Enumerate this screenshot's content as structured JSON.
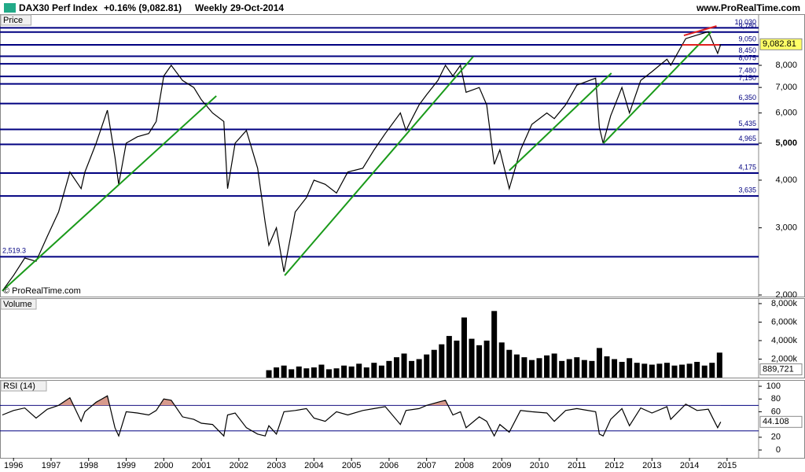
{
  "header": {
    "title": "DAX30 Perf Index",
    "change": "+0.16% (9,082.81)",
    "interval": "Weekly",
    "date": "29-Oct-2014",
    "site": "www.ProRealTime.com"
  },
  "chart_data": [
    {
      "type": "line",
      "label": "Price",
      "watermark": "© ProRealTime.com",
      "color": "#000000",
      "log_scale": true,
      "xlim": [
        1995.64,
        2015.84
      ],
      "ylim": [
        1981,
        10894
      ],
      "yticks": [
        {
          "value": 2000,
          "label": "2,000"
        },
        {
          "value": 3000,
          "label": "3,000"
        },
        {
          "value": 4000,
          "label": "4,000"
        },
        {
          "value": 5000,
          "label": "5,000"
        },
        {
          "value": 6000,
          "label": "6,000"
        },
        {
          "value": 7000,
          "label": "7,000"
        },
        {
          "value": 8000,
          "label": "8,000"
        }
      ],
      "x": [
        1995.7,
        1996.0,
        1996.3,
        1996.6,
        1996.9,
        1997.2,
        1997.5,
        1997.8,
        1997.9,
        1998.2,
        1998.5,
        1998.7,
        1998.8,
        1999.0,
        1999.3,
        1999.6,
        1999.8,
        2000.0,
        2000.2,
        2000.5,
        2000.8,
        2001.0,
        2001.3,
        2001.6,
        2001.7,
        2001.9,
        2002.2,
        2002.5,
        2002.7,
        2002.8,
        2003.0,
        2003.2,
        2003.5,
        2003.8,
        2004.0,
        2004.3,
        2004.6,
        2004.9,
        2005.3,
        2005.6,
        2005.9,
        2006.3,
        2006.45,
        2006.8,
        2007.0,
        2007.3,
        2007.5,
        2007.7,
        2007.9,
        2008.05,
        2008.4,
        2008.6,
        2008.8,
        2008.95,
        2009.2,
        2009.5,
        2009.8,
        2010.2,
        2010.4,
        2010.7,
        2011.0,
        2011.5,
        2011.6,
        2011.7,
        2011.9,
        2012.2,
        2012.4,
        2012.7,
        2013.0,
        2013.4,
        2013.5,
        2013.9,
        2014.2,
        2014.5,
        2014.75,
        2014.83
      ],
      "values": [
        2050,
        2250,
        2500,
        2450,
        2850,
        3300,
        4200,
        3800,
        4200,
        5000,
        6100,
        4600,
        3900,
        5000,
        5200,
        5300,
        5700,
        7500,
        8000,
        7300,
        7000,
        6500,
        6000,
        5700,
        3800,
        5000,
        5400,
        4300,
        3100,
        2700,
        3000,
        2300,
        3300,
        3600,
        4000,
        3900,
        3700,
        4200,
        4300,
        4800,
        5300,
        6000,
        5400,
        6300,
        6700,
        7300,
        8000,
        7500,
        8000,
        6800,
        7000,
        6300,
        4400,
        4800,
        3800,
        4800,
        5600,
        6000,
        5800,
        6300,
        7100,
        7400,
        5500,
        5000,
        5900,
        7000,
        6000,
        7300,
        7700,
        8300,
        8000,
        9400,
        9600,
        9800,
        8600,
        9082.81
      ],
      "last_value": {
        "value": 9082.81,
        "label": "9,082.81"
      },
      "levels": [
        {
          "value": 10030,
          "label": "10,030"
        },
        {
          "value": 9780,
          "label": "9,780"
        },
        {
          "value": 9050,
          "label": "9,050"
        },
        {
          "value": 8450,
          "label": "8,450"
        },
        {
          "value": 8075,
          "label": "8,075"
        },
        {
          "value": 7480,
          "label": "7,480"
        },
        {
          "value": 7150,
          "label": "7,150"
        },
        {
          "value": 6350,
          "label": "6,350"
        },
        {
          "value": 5435,
          "label": "5,435"
        },
        {
          "value": 4965,
          "label": "4,965"
        },
        {
          "value": 4175,
          "label": "4,175"
        },
        {
          "value": 3635,
          "label": "3,635"
        },
        {
          "value": 2519.3,
          "label": "2,519.3"
        }
      ],
      "level_color": "#000080",
      "trendlines": [
        {
          "color": "#1a9a1a",
          "x": [
            1995.7,
            2001.4
          ],
          "values": [
            2050,
            6650
          ]
        },
        {
          "color": "#1a9a1a",
          "x": [
            2003.22,
            2008.24
          ],
          "values": [
            2250,
            8430
          ]
        },
        {
          "color": "#1a9a1a",
          "x": [
            2009.2,
            2011.92
          ],
          "values": [
            4240,
            7630
          ]
        },
        {
          "color": "#1a9a1a",
          "x": [
            2011.71,
            2014.58
          ],
          "values": [
            5000,
            9800
          ]
        },
        {
          "color": "#e02020",
          "x": [
            2013.85,
            2014.72
          ],
          "values": [
            9580,
            10140
          ]
        },
        {
          "color": "#e02020",
          "x": [
            2013.8,
            2014.8
          ],
          "values": [
            9050,
            9050
          ]
        }
      ]
    },
    {
      "type": "bar",
      "label": "Volume",
      "color": "#000000",
      "xlim": [
        1995.64,
        2015.84
      ],
      "ylim": [
        0,
        8590000
      ],
      "yticks": [
        {
          "value": 2000000,
          "label": "2,000k"
        },
        {
          "value": 4000000,
          "label": "4,000k"
        },
        {
          "value": 6000000,
          "label": "6,000k"
        },
        {
          "value": 8000000,
          "label": "8,000k"
        }
      ],
      "x": [
        2002.8,
        2003.0,
        2003.2,
        2003.4,
        2003.6,
        2003.8,
        2004.0,
        2004.2,
        2004.4,
        2004.6,
        2004.8,
        2005.0,
        2005.2,
        2005.4,
        2005.6,
        2005.8,
        2006.0,
        2006.2,
        2006.4,
        2006.6,
        2006.8,
        2007.0,
        2007.2,
        2007.4,
        2007.6,
        2007.8,
        2008.0,
        2008.2,
        2008.4,
        2008.6,
        2008.8,
        2009.0,
        2009.2,
        2009.4,
        2009.6,
        2009.8,
        2010.0,
        2010.2,
        2010.4,
        2010.6,
        2010.8,
        2011.0,
        2011.2,
        2011.4,
        2011.6,
        2011.8,
        2012.0,
        2012.2,
        2012.4,
        2012.6,
        2012.8,
        2013.0,
        2013.2,
        2013.4,
        2013.6,
        2013.8,
        2014.0,
        2014.2,
        2014.4,
        2014.6,
        2014.8
      ],
      "values": [
        800000,
        1100000,
        1300000,
        900000,
        1200000,
        1000000,
        1100000,
        1400000,
        900000,
        1000000,
        1300000,
        1200000,
        1500000,
        1100000,
        1600000,
        1300000,
        1800000,
        2200000,
        2600000,
        1800000,
        2000000,
        2500000,
        3000000,
        3600000,
        4500000,
        4000000,
        6500000,
        4200000,
        3500000,
        4000000,
        7200000,
        3800000,
        3000000,
        2500000,
        2200000,
        1900000,
        2100000,
        2400000,
        2600000,
        1800000,
        2000000,
        2200000,
        1900000,
        1800000,
        3200000,
        2300000,
        2000000,
        1700000,
        2100000,
        1600000,
        1500000,
        1400000,
        1500000,
        1600000,
        1300000,
        1400000,
        1500000,
        1700000,
        1300000,
        1600000,
        2700000
      ],
      "last_value": {
        "value": 889721,
        "label": "889,721"
      }
    },
    {
      "type": "line",
      "label": "RSI (14)",
      "color": "#000000",
      "xlim": [
        1995.64,
        2015.84
      ],
      "ylim": [
        -12.3,
        109.9
      ],
      "yticks": [
        0,
        20,
        60,
        80,
        100
      ],
      "xticks": [
        1996,
        1997,
        1998,
        1999,
        2000,
        2001,
        2002,
        2003,
        2004,
        2005,
        2006,
        2007,
        2008,
        2009,
        2010,
        2011,
        2012,
        2013,
        2014,
        2015
      ],
      "levels": [
        30,
        70
      ],
      "level_color": "#000080",
      "overbought_fill": "#d89a8c",
      "x": [
        1995.7,
        1996.0,
        1996.3,
        1996.6,
        1996.9,
        1997.2,
        1997.5,
        1997.8,
        1997.9,
        1998.2,
        1998.5,
        1998.7,
        1998.8,
        1999.0,
        1999.3,
        1999.6,
        1999.8,
        2000.0,
        2000.2,
        2000.5,
        2000.8,
        2001.0,
        2001.3,
        2001.6,
        2001.7,
        2001.9,
        2002.2,
        2002.5,
        2002.7,
        2002.8,
        2003.0,
        2003.2,
        2003.5,
        2003.8,
        2004.0,
        2004.3,
        2004.6,
        2004.9,
        2005.3,
        2005.6,
        2005.9,
        2006.3,
        2006.45,
        2006.8,
        2007.0,
        2007.3,
        2007.5,
        2007.7,
        2007.9,
        2008.05,
        2008.4,
        2008.6,
        2008.8,
        2008.95,
        2009.2,
        2009.5,
        2009.8,
        2010.2,
        2010.4,
        2010.7,
        2011.0,
        2011.5,
        2011.6,
        2011.7,
        2011.9,
        2012.2,
        2012.4,
        2012.7,
        2013.0,
        2013.4,
        2013.5,
        2013.9,
        2014.2,
        2014.5,
        2014.75,
        2014.83
      ],
      "values": [
        55,
        62,
        66,
        50,
        64,
        70,
        82,
        45,
        60,
        75,
        85,
        35,
        22,
        60,
        58,
        55,
        62,
        80,
        78,
        52,
        48,
        42,
        40,
        22,
        55,
        58,
        35,
        25,
        22,
        38,
        25,
        60,
        62,
        65,
        50,
        45,
        60,
        55,
        62,
        65,
        68,
        40,
        62,
        65,
        70,
        75,
        78,
        55,
        60,
        35,
        52,
        45,
        22,
        40,
        28,
        62,
        60,
        58,
        45,
        62,
        65,
        60,
        25,
        22,
        48,
        65,
        38,
        66,
        58,
        68,
        48,
        72,
        62,
        64,
        35,
        44.108
      ],
      "last_value": 44.108
    }
  ]
}
